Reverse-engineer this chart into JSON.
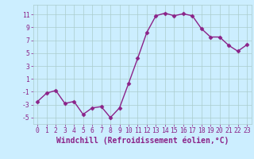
{
  "x": [
    0,
    1,
    2,
    3,
    4,
    5,
    6,
    7,
    8,
    9,
    10,
    11,
    12,
    13,
    14,
    15,
    16,
    17,
    18,
    19,
    20,
    21,
    22,
    23
  ],
  "y": [
    -2.5,
    -1.2,
    -0.8,
    -2.8,
    -2.5,
    -4.5,
    -3.5,
    -3.3,
    -5.0,
    -3.5,
    0.3,
    4.2,
    8.2,
    10.8,
    11.2,
    10.8,
    11.1,
    10.8,
    8.8,
    7.5,
    7.5,
    6.2,
    5.3,
    6.3
  ],
  "line_color": "#8B2288",
  "marker": "D",
  "marker_size": 2.5,
  "bg_color": "#cceeff",
  "grid_color": "#aacccc",
  "xlabel": "Windchill (Refroidissement éolien,°C)",
  "xlim": [
    -0.5,
    23.5
  ],
  "ylim": [
    -6,
    12.5
  ],
  "yticks": [
    -5,
    -3,
    -1,
    1,
    3,
    5,
    7,
    9,
    11
  ],
  "xticks": [
    0,
    1,
    2,
    3,
    4,
    5,
    6,
    7,
    8,
    9,
    10,
    11,
    12,
    13,
    14,
    15,
    16,
    17,
    18,
    19,
    20,
    21,
    22,
    23
  ],
  "tick_color": "#8B2288",
  "tick_fontsize": 5.8,
  "xlabel_fontsize": 7.0,
  "linewidth": 1.0
}
